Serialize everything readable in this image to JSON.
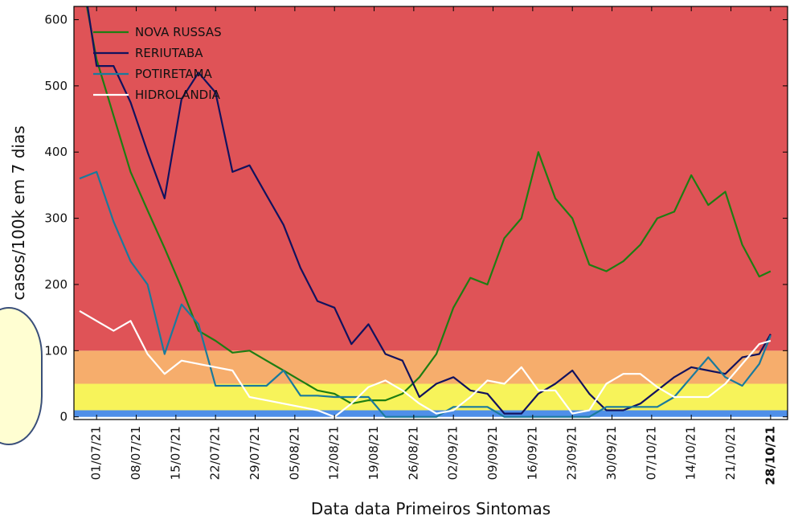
{
  "chart_data": {
    "type": "line",
    "x_label": "Data data Primeiros Sintomas",
    "y_label": "casos/100k em 7 dias",
    "x": [
      "28/06/21",
      "01/07/21",
      "04/07/21",
      "07/07/21",
      "10/07/21",
      "13/07/21",
      "16/07/21",
      "19/07/21",
      "22/07/21",
      "25/07/21",
      "28/07/21",
      "31/07/21",
      "03/08/21",
      "06/08/21",
      "09/08/21",
      "12/08/21",
      "15/08/21",
      "18/08/21",
      "21/08/21",
      "24/08/21",
      "27/08/21",
      "30/08/21",
      "02/09/21",
      "05/09/21",
      "08/09/21",
      "11/09/21",
      "14/09/21",
      "17/09/21",
      "20/09/21",
      "23/09/21",
      "26/09/21",
      "29/09/21",
      "02/10/21",
      "05/10/21",
      "08/10/21",
      "11/10/21",
      "14/10/21",
      "17/10/21",
      "20/10/21",
      "23/10/21",
      "26/10/21",
      "28/10/21"
    ],
    "series": [
      {
        "name": "NOVA RUSSAS",
        "color": "#1e7d12",
        "values": [
          680,
          540,
          455,
          370,
          312,
          255,
          195,
          130,
          115,
          97,
          100,
          85,
          70,
          55,
          40,
          35,
          20,
          25,
          25,
          35,
          60,
          95,
          165,
          210,
          200,
          270,
          300,
          400,
          330,
          300,
          230,
          220,
          235,
          260,
          300,
          310,
          365,
          320,
          340,
          260,
          212,
          220
        ]
      },
      {
        "name": "RERIUTABA",
        "color": "#12125e",
        "values": [
          700,
          530,
          530,
          475,
          400,
          330,
          480,
          520,
          490,
          370,
          380,
          335,
          290,
          225,
          175,
          165,
          110,
          140,
          95,
          85,
          30,
          50,
          60,
          40,
          35,
          5,
          5,
          35,
          50,
          70,
          35,
          10,
          10,
          20,
          40,
          60,
          75,
          70,
          65,
          90,
          95,
          125
        ]
      },
      {
        "name": "POTIRETAMA",
        "color": "#1a7a9c",
        "values": [
          360,
          370,
          295,
          235,
          200,
          95,
          170,
          140,
          47,
          47,
          47,
          47,
          70,
          32,
          32,
          30,
          30,
          30,
          0,
          0,
          0,
          0,
          15,
          15,
          15,
          0,
          0,
          0,
          0,
          0,
          0,
          15,
          15,
          15,
          15,
          30,
          60,
          90,
          60,
          47,
          80,
          123
        ]
      },
      {
        "name": "HIDROLANDIA",
        "color": "#ffffff",
        "values": [
          160,
          145,
          130,
          145,
          95,
          65,
          85,
          80,
          75,
          70,
          30,
          25,
          20,
          15,
          10,
          0,
          20,
          45,
          55,
          40,
          20,
          5,
          10,
          30,
          55,
          50,
          75,
          40,
          40,
          5,
          10,
          50,
          65,
          65,
          45,
          30,
          30,
          30,
          50,
          80,
          110,
          115
        ]
      }
    ],
    "bands": [
      {
        "from": 0,
        "to": 10,
        "color": "#4f8fe8"
      },
      {
        "from": 10,
        "to": 50,
        "color": "#f7f35a"
      },
      {
        "from": 50,
        "to": 100,
        "color": "#f6ad6c"
      },
      {
        "from": 100,
        "to": 620,
        "color": "#df5357"
      }
    ],
    "xlim": [
      "27/06/21",
      "31/10/21"
    ],
    "ylim": [
      -4,
      620
    ],
    "yticks": [
      0,
      100,
      200,
      300,
      400,
      500,
      600
    ],
    "xticks": [
      "01/07/21",
      "08/07/21",
      "15/07/21",
      "22/07/21",
      "29/07/21",
      "05/08/21",
      "12/08/21",
      "19/08/21",
      "26/08/21",
      "02/09/21",
      "09/09/21",
      "16/09/21",
      "23/09/21",
      "30/09/21",
      "07/10/21",
      "14/10/21",
      "21/10/21",
      "28/10/21"
    ],
    "legend": "upper left"
  }
}
